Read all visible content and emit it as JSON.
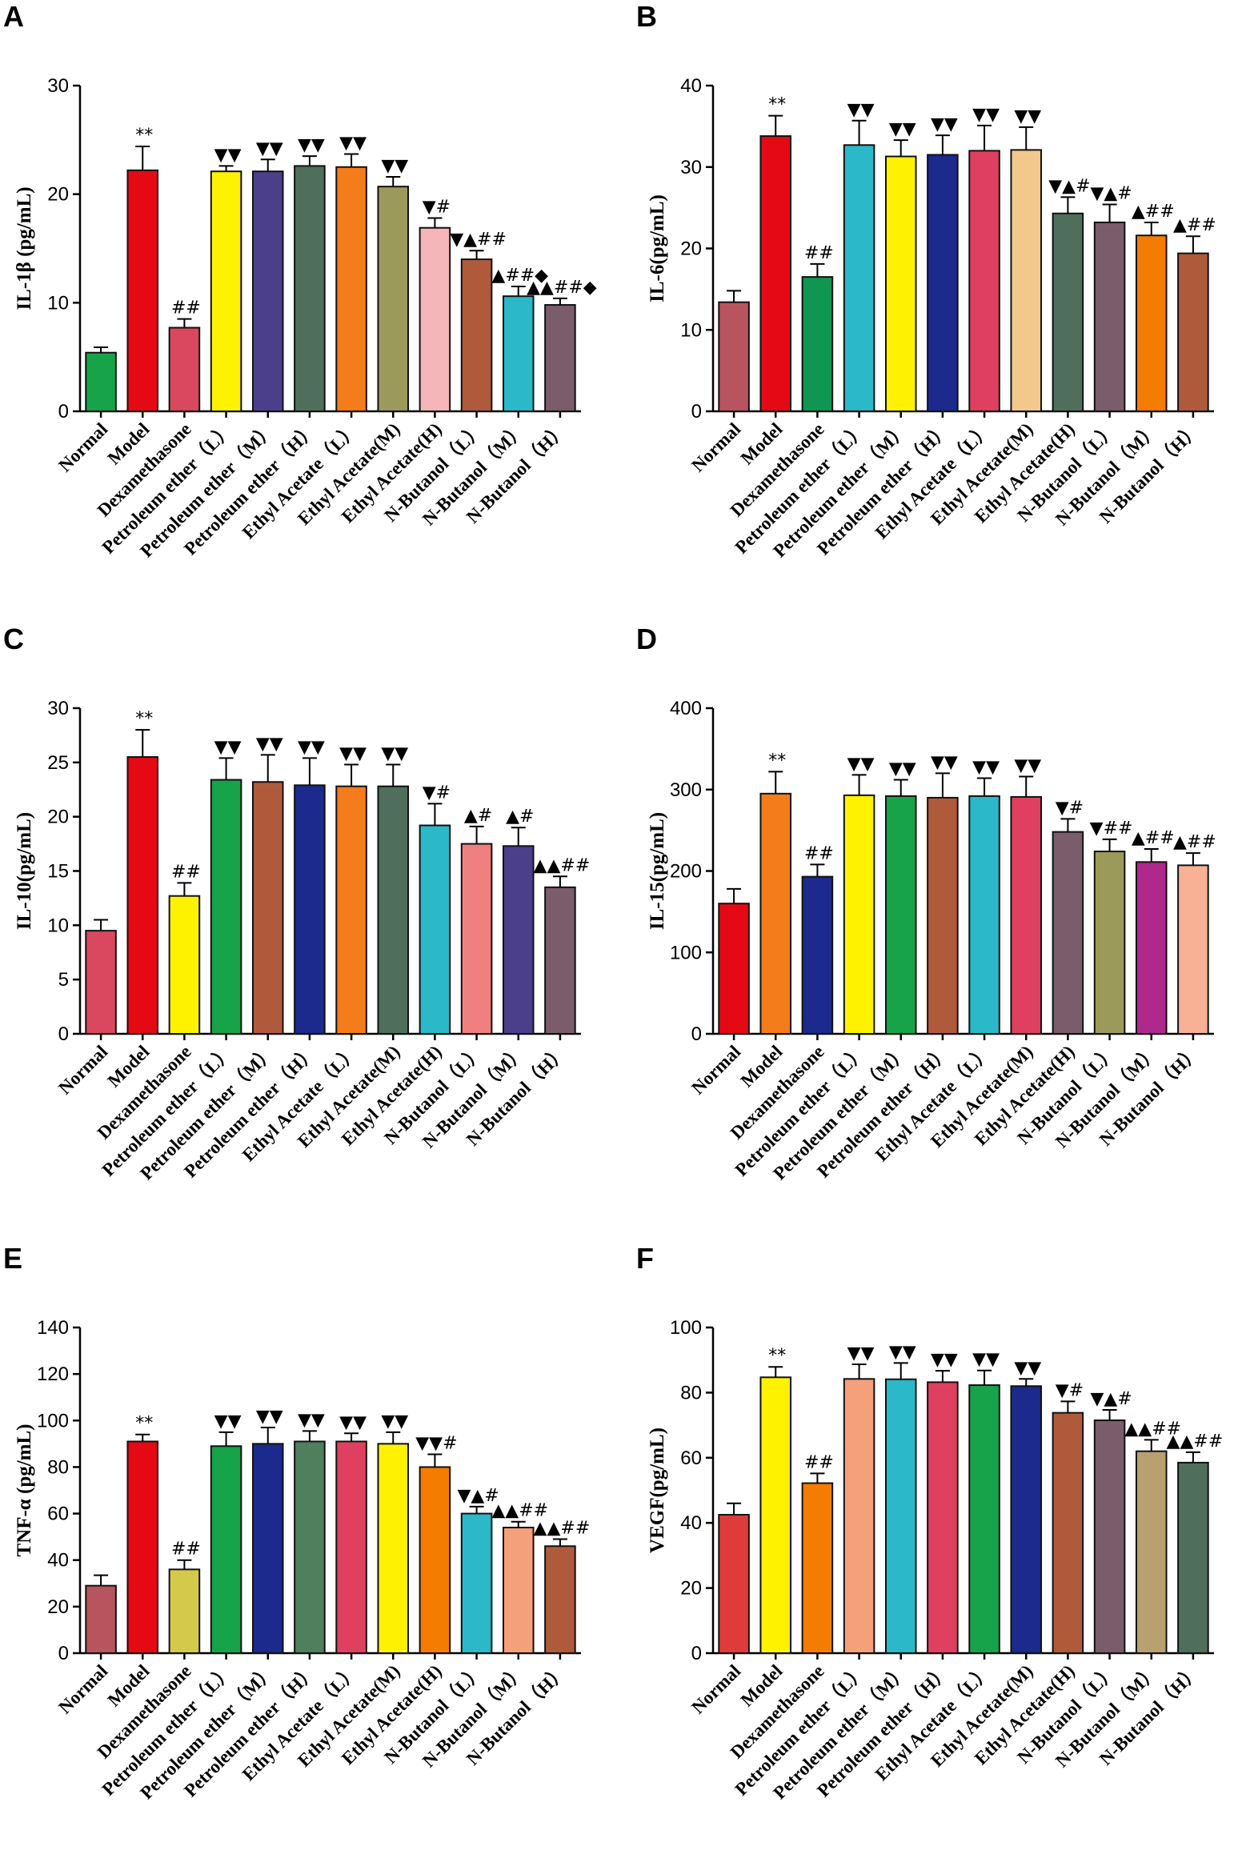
{
  "chart_data": [
    {
      "type": "bar",
      "panel": "A",
      "ylabel": "IL-1β (pg/mL)",
      "ylim": [
        0,
        30
      ],
      "yticks": [
        0,
        10,
        20,
        30
      ],
      "categories": [
        "Normal",
        "Model",
        "Dexamethasone",
        "Petroleum ether（L）",
        "Petroleum ether（M）",
        "Petroleum ether（H）",
        "Ethyl Acetate（L）",
        "Ethyl Acetate(M)",
        "Ethyl Acetate(H)",
        "N-Butanol（L）",
        "N-Butanol（M）",
        "N-Butanol（H）"
      ],
      "values": [
        5.4,
        22.2,
        7.7,
        22.1,
        22.1,
        22.6,
        22.5,
        20.7,
        16.9,
        14.0,
        10.6,
        9.8
      ],
      "errors": [
        0.5,
        2.2,
        0.8,
        0.5,
        1.1,
        0.9,
        1.2,
        0.9,
        0.9,
        0.8,
        0.9,
        0.6
      ],
      "colors": [
        "#16a34a",
        "#e50914",
        "#d9485f",
        "#fff200",
        "#4b3f8c",
        "#4f6f5c",
        "#f47c1a",
        "#9b9a5a",
        "#f4b6b8",
        "#b05a3c",
        "#2bb8c8",
        "#7a5c6b"
      ],
      "labels": [
        "",
        "**",
        "##",
        "▼▼",
        "▼▼",
        "▼▼",
        "▼▼",
        "▼▼",
        "▼#",
        "▼▲##",
        "▲##◆",
        "▲▲##◆"
      ]
    },
    {
      "type": "bar",
      "panel": "B",
      "ylabel": "IL-6(pg/mL)",
      "ylim": [
        0,
        40
      ],
      "yticks": [
        0,
        10,
        20,
        30,
        40
      ],
      "categories": [
        "Normal",
        "Model",
        "Dexamethasone",
        "Petroleum ether（L）",
        "Petroleum ether（M）",
        "Petroleum ether（H）",
        "Ethyl Acetate（L）",
        "Ethyl Acetate(M)",
        "Ethyl Acetate(H)",
        "N-Butanol（L）",
        "N-Butanol（M）",
        "N-Butanol（H）"
      ],
      "values": [
        13.4,
        33.8,
        16.5,
        32.7,
        31.3,
        31.5,
        32.0,
        32.1,
        24.3,
        23.2,
        21.6,
        19.4
      ],
      "errors": [
        1.4,
        2.5,
        1.6,
        3.0,
        2.0,
        2.4,
        3.1,
        2.8,
        2.0,
        2.2,
        1.6,
        2.1
      ],
      "colors": [
        "#b8545e",
        "#e50914",
        "#0f9651",
        "#2bb8c8",
        "#fff200",
        "#1b2a8c",
        "#e0405f",
        "#f2c98a",
        "#4f6f5c",
        "#7a5c6b",
        "#f47c00",
        "#b05a3c"
      ],
      "labels": [
        "",
        "**",
        "##",
        "▼▼",
        "▼▼",
        "▼▼",
        "▼▼",
        "▼▼",
        "▼▲#",
        "▼▲#",
        "▲##",
        "▲##"
      ]
    },
    {
      "type": "bar",
      "panel": "C",
      "ylabel": "IL-10(pg/mL)",
      "ylim": [
        0,
        30
      ],
      "yticks": [
        0,
        5,
        10,
        15,
        20,
        25,
        30
      ],
      "categories": [
        "Normal",
        "Model",
        "Dexamethasone",
        "Petroleum ether（L）",
        "Petroleum ether（M）",
        "Petroleum ether（H）",
        "Ethyl Acetate（L）",
        "Ethyl Acetate(M)",
        "Ethyl Acetate(H)",
        "N-Butanol（L）",
        "N-Butanol（M）",
        "N-Butanol（H）"
      ],
      "values": [
        9.5,
        25.5,
        12.7,
        23.4,
        23.2,
        22.9,
        22.8,
        22.8,
        19.2,
        17.5,
        17.3,
        13.5
      ],
      "errors": [
        1.0,
        2.5,
        1.2,
        2.0,
        2.5,
        2.5,
        2.0,
        2.0,
        2.0,
        1.6,
        1.7,
        1.0
      ],
      "colors": [
        "#d9485f",
        "#e50914",
        "#fff200",
        "#16a34a",
        "#b05a3c",
        "#1b2a8c",
        "#f47c1a",
        "#4f6f5c",
        "#2bb8c8",
        "#f08080",
        "#4b3f8c",
        "#7a5c6b"
      ],
      "labels": [
        "",
        "**",
        "##",
        "▼▼",
        "▼▼",
        "▼▼",
        "▼▼",
        "▼▼",
        "▼#",
        "▲#",
        "▲#",
        "▲▲##"
      ]
    },
    {
      "type": "bar",
      "panel": "D",
      "ylabel": "IL-15(pg/mL)",
      "ylim": [
        0,
        400
      ],
      "yticks": [
        0,
        100,
        200,
        300,
        400
      ],
      "categories": [
        "Normal",
        "Model",
        "Dexamethasone",
        "Petroleum ether（L）",
        "Petroleum ether（M）",
        "Petroleum ether（H）",
        "Ethyl Acetate（L）",
        "Ethyl Acetate(M)",
        "Ethyl Acetate(H)",
        "N-Butanol（L）",
        "N-Butanol（M）",
        "N-Butanol（H）"
      ],
      "values": [
        160,
        295,
        193,
        293,
        292,
        290,
        292,
        291,
        248,
        224,
        211,
        207
      ],
      "errors": [
        18,
        27,
        15,
        25,
        20,
        30,
        22,
        25,
        16,
        15,
        16,
        15
      ],
      "colors": [
        "#e50914",
        "#f47c1a",
        "#1b2a8c",
        "#fff200",
        "#16a34a",
        "#b05a3c",
        "#2bb8c8",
        "#e0405f",
        "#7a5c6b",
        "#9b9a5a",
        "#b0288c",
        "#f8b195"
      ],
      "labels": [
        "",
        "**",
        "##",
        "▼▼",
        "▼▼",
        "▼▼",
        "▼▼",
        "▼▼",
        "▼#",
        "▼##",
        "▲##",
        "▲##"
      ]
    },
    {
      "type": "bar",
      "panel": "E",
      "ylabel": "TNF-α (pg/mL)",
      "ylim": [
        0,
        140
      ],
      "yticks": [
        0,
        20,
        40,
        60,
        80,
        100,
        120,
        140
      ],
      "categories": [
        "Normal",
        "Model",
        "Dexamethasone",
        "Petroleum ether（L）",
        "Petroleum ether（M）",
        "Petroleum ether（H）",
        "Ethyl Acetate（L）",
        "Ethyl Acetate(M)",
        "Ethyl Acetate(H)",
        "N-Butanol（L）",
        "N-Butanol（M）",
        "N-Butanol（H）"
      ],
      "values": [
        29,
        91,
        36,
        89,
        90,
        91,
        91,
        90,
        80,
        60,
        54,
        46
      ],
      "errors": [
        4.5,
        3,
        4,
        6,
        7,
        4.5,
        3.5,
        5,
        5.5,
        3,
        2.5,
        3
      ],
      "colors": [
        "#b8545e",
        "#e50914",
        "#d4c94a",
        "#16a34a",
        "#1b2a8c",
        "#4f7f5c",
        "#e0405f",
        "#fff200",
        "#f47c00",
        "#2bb8c8",
        "#f4a07a",
        "#b05a3c"
      ],
      "labels": [
        "",
        "**",
        "##",
        "▼▼",
        "▼▼",
        "▼▼",
        "▼▼",
        "▼▼",
        "▼▼#",
        "▼▲#",
        "▲▲##",
        "▲▲##"
      ]
    },
    {
      "type": "bar",
      "panel": "F",
      "ylabel": "VEGF(pg/mL)",
      "ylim": [
        0,
        100
      ],
      "yticks": [
        0,
        20,
        40,
        60,
        80,
        100
      ],
      "categories": [
        "Normal",
        "Model",
        "Dexamethasone",
        "Petroleum ether（L）",
        "Petroleum ether（M）",
        "Petroleum ether（H）",
        "Ethyl Acetate（L）",
        "Ethyl Acetate(M)",
        "Ethyl Acetate(H)",
        "N-Butanol（L）",
        "N-Butanol（M）",
        "N-Butanol（H）"
      ],
      "values": [
        42.5,
        84.7,
        52.2,
        84.2,
        84.1,
        83.2,
        82.3,
        82.0,
        73.8,
        71.5,
        62.0,
        58.5
      ],
      "errors": [
        3.5,
        3.2,
        3.0,
        4.5,
        5.0,
        3.5,
        4.5,
        2.2,
        3.5,
        3.2,
        3.5,
        3.2
      ],
      "colors": [
        "#e03b3b",
        "#fff200",
        "#f47c00",
        "#f4a07a",
        "#2bb8c8",
        "#e0405f",
        "#16a34a",
        "#1b2a8c",
        "#b05a3c",
        "#7a5c6b",
        "#b8a070",
        "#4f6f5c"
      ],
      "labels": [
        "",
        "**",
        "##",
        "▼▼",
        "▼▼",
        "▼▼",
        "▼▼",
        "▼▼",
        "▼#",
        "▼▲#",
        "▲▲##",
        "▲▲##"
      ]
    }
  ]
}
